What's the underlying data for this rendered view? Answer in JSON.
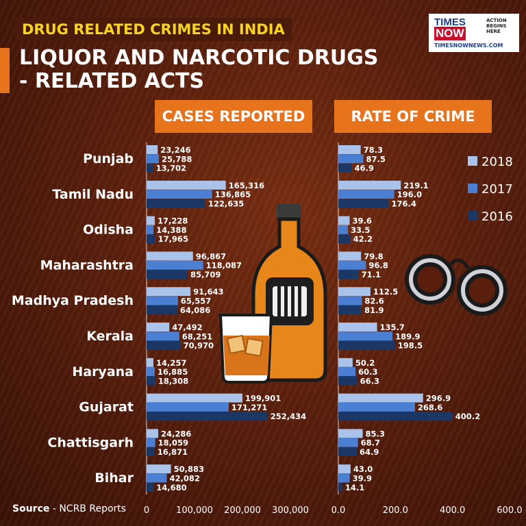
{
  "header": {
    "kicker": "DRUG RELATED CRIMES IN INDIA",
    "title_line1": "LIQUOR AND NARCOTIC DRUGS",
    "title_line2": "- RELATED  ACTS"
  },
  "logo": {
    "times": "TIMES",
    "now": "NOW",
    "tagline": "ACTION BEGINS HERE",
    "url": "TIMESNOWNEWS.COM"
  },
  "panels": {
    "cases_title": "CASES REPORTED",
    "rate_title": "RATE OF CRIME"
  },
  "source": {
    "label": "Source",
    "text": " - NCRB Reports"
  },
  "colors": {
    "2018": "#a9c3ea",
    "2017": "#4a7fd4",
    "2016": "#1b3766",
    "accent": "#e8731d",
    "kicker_text": "#f7d51c"
  },
  "chart_data": [
    {
      "type": "bar",
      "orientation": "horizontal",
      "title": "CASES REPORTED",
      "categories": [
        "Punjab",
        "Tamil Nadu",
        "Odisha",
        "Maharashtra",
        "Madhya Pradesh",
        "Kerala",
        "Haryana",
        "Gujarat",
        "Chattisgarh",
        "Bihar"
      ],
      "series": [
        {
          "name": "2018",
          "values": [
            23246,
            165316,
            17228,
            96867,
            91643,
            47492,
            14257,
            199901,
            24286,
            50883
          ]
        },
        {
          "name": "2017",
          "values": [
            25788,
            136865,
            14388,
            118087,
            65557,
            68251,
            16885,
            171271,
            18059,
            42082
          ]
        },
        {
          "name": "2016",
          "values": [
            13702,
            122635,
            17965,
            85709,
            64086,
            70970,
            18308,
            252434,
            16871,
            14680
          ]
        }
      ],
      "labels": [
        [
          "23,246",
          "165,316",
          "17,228",
          "96,867",
          "91,643",
          "47,492",
          "14,257",
          "199,901",
          "24,286",
          "50,883"
        ],
        [
          "25,788",
          "136,865",
          "14,388",
          "118,087",
          "65,557",
          "68,251",
          "16,885",
          "171,271",
          "18,059",
          "42,082"
        ],
        [
          "13,702",
          "122,635",
          "17,965",
          "85,709",
          "64,086",
          "70,970",
          "18,308",
          "252,434",
          "16,871",
          "14,680"
        ]
      ],
      "xlim": [
        0,
        300000
      ],
      "ticks": [
        "0",
        "100,000",
        "200,000",
        "300,000"
      ]
    },
    {
      "type": "bar",
      "orientation": "horizontal",
      "title": "RATE OF CRIME",
      "categories": [
        "Punjab",
        "Tamil Nadu",
        "Odisha",
        "Maharashtra",
        "Madhya Pradesh",
        "Kerala",
        "Haryana",
        "Gujarat",
        "Chattisgarh",
        "Bihar"
      ],
      "series": [
        {
          "name": "2018",
          "values": [
            78.3,
            219.1,
            39.6,
            79.8,
            112.5,
            135.7,
            50.2,
            296.9,
            85.3,
            43.0
          ]
        },
        {
          "name": "2017",
          "values": [
            87.5,
            196.0,
            33.5,
            96.8,
            82.6,
            189.9,
            60.3,
            268.6,
            68.7,
            39.9
          ]
        },
        {
          "name": "2016",
          "values": [
            46.9,
            176.4,
            42.2,
            71.1,
            81.9,
            198.5,
            66.3,
            400.2,
            64.9,
            14.1
          ]
        }
      ],
      "labels": [
        [
          "78.3",
          "219.1",
          "39.6",
          "79.8",
          "112.5",
          "135.7",
          "50.2",
          "296.9",
          "85.3",
          "43.0"
        ],
        [
          "87.5",
          "196.0",
          "33.5",
          "96.8",
          "82.6",
          "189.9",
          "60.3",
          "268.6",
          "68.7",
          "39.9"
        ],
        [
          "46.9",
          "176.4",
          "42.2",
          "71.1",
          "81.9",
          "198.5",
          "66.3",
          "400.2",
          "64.9",
          "14.1"
        ]
      ],
      "xlim": [
        0,
        600
      ],
      "ticks": [
        "0.0",
        "200.0",
        "400.0",
        "600.0"
      ],
      "legend": [
        "2018",
        "2017",
        "2016"
      ],
      "legend_position": "top-right"
    }
  ]
}
